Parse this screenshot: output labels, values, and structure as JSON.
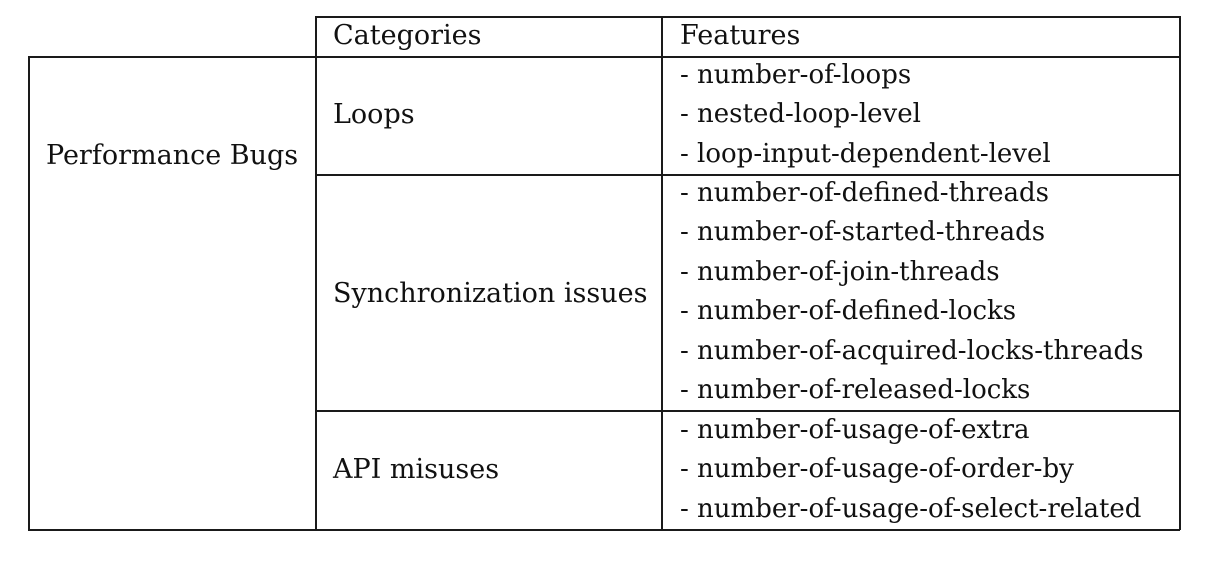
{
  "table": {
    "header": {
      "categories": "Categories",
      "features": "Features"
    },
    "row_label": "Performance Bugs",
    "groups": [
      {
        "category": "Loops",
        "features": [
          "- number-of-loops",
          "- nested-loop-level",
          "- loop-input-dependent-level"
        ]
      },
      {
        "category": "Synchronization issues",
        "features": [
          "- number-of-defined-threads",
          "- number-of-started-threads",
          "- number-of-join-threads",
          "- number-of-defined-locks",
          "- number-of-acquired-locks-threads",
          "- number-of-released-locks"
        ]
      },
      {
        "category": "API misuses",
        "features": [
          "- number-of-usage-of-extra",
          "- number-of-usage-of-order-by",
          "- number-of-usage-of-select-related"
        ]
      }
    ]
  }
}
